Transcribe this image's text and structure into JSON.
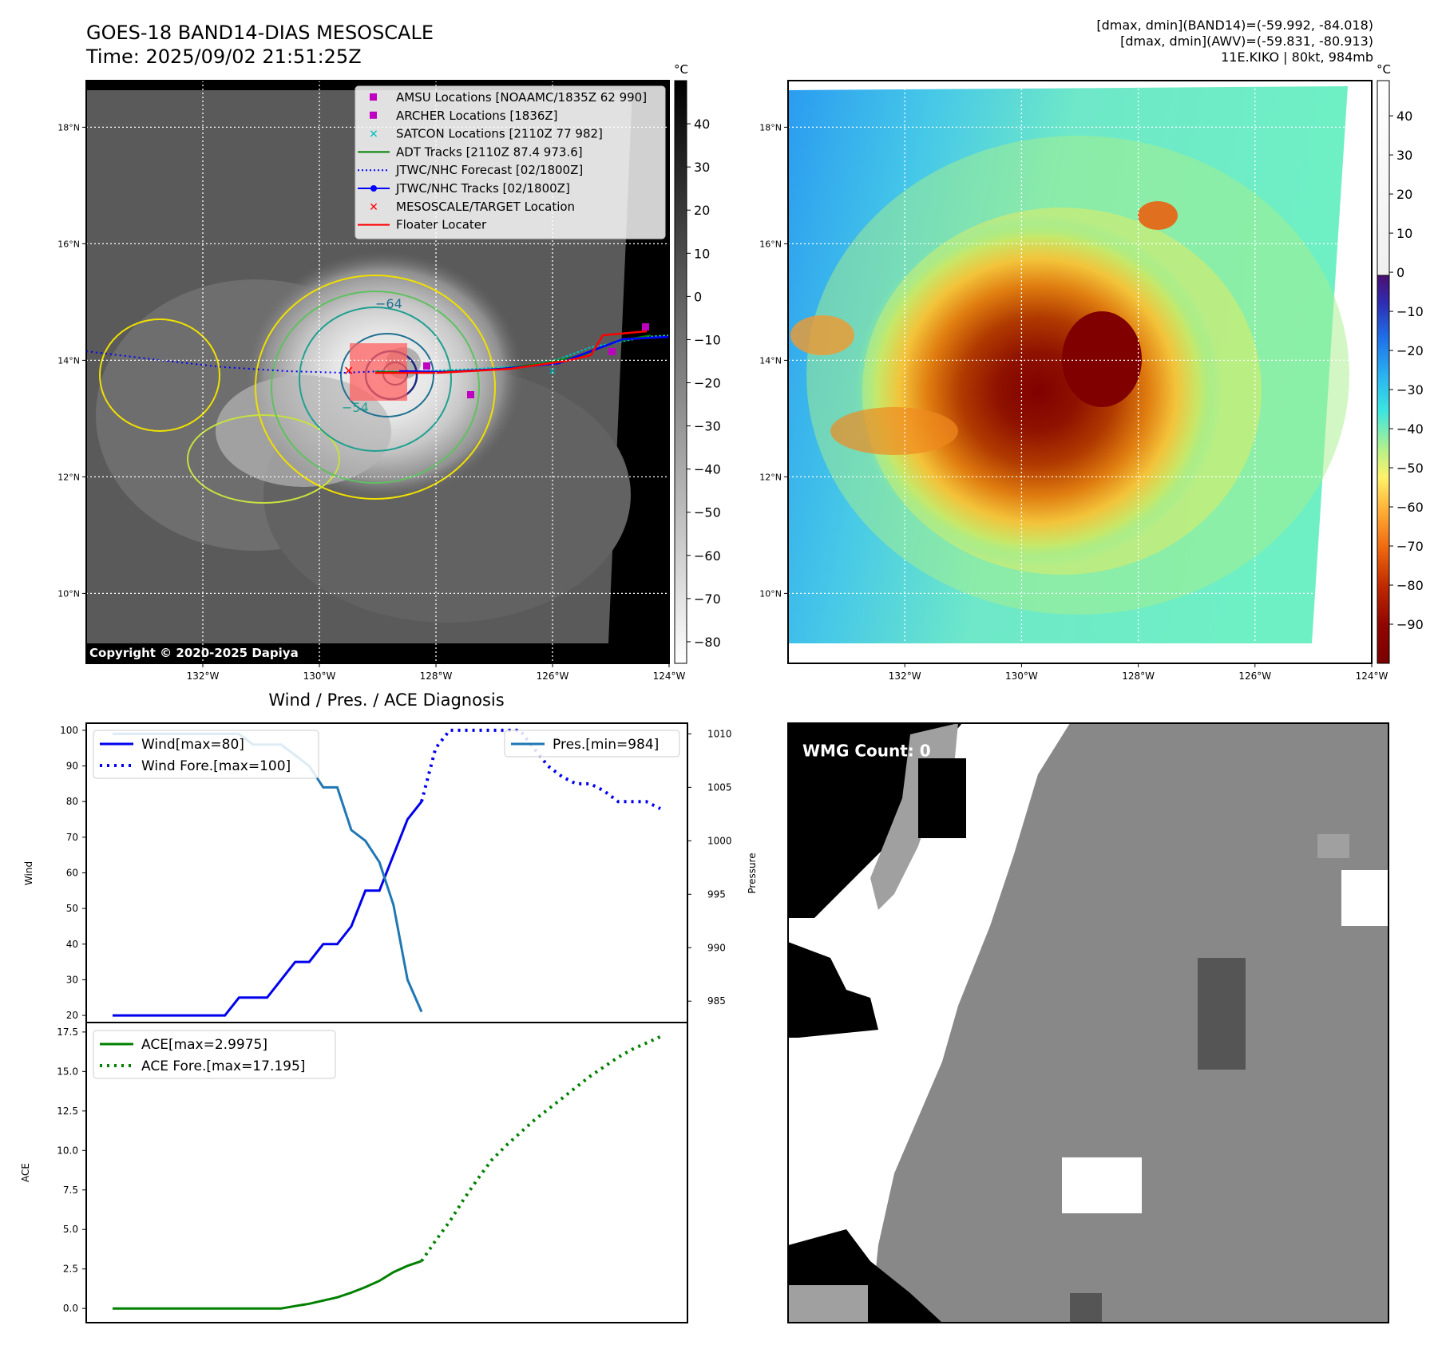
{
  "header": {
    "title": "GOES-18 BAND14-DIAS MESOSCALE",
    "time": "Time: 2025/09/02 21:51:25Z",
    "info_band14": "[dmax, dmin](BAND14)=(-59.992, -84.018)",
    "info_awv": "[dmax, dmin](AWV)=(-59.831, -80.913)",
    "info_storm": "11E.KIKO | 80kt, 984mb"
  },
  "map_axes": {
    "lon_ticks": [
      "132°W",
      "130°W",
      "128°W",
      "126°W",
      "124°W"
    ],
    "lon_values": [
      -132,
      -130,
      -128,
      -126,
      -124
    ],
    "lat_ticks": [
      "18°N",
      "16°N",
      "14°N",
      "12°N",
      "10°N"
    ],
    "lat_values": [
      18,
      16,
      14,
      12,
      10
    ],
    "lon_range": [
      -134,
      -124
    ],
    "lat_range": [
      8.8,
      18.8
    ]
  },
  "ir_panel": {
    "colorbar_unit": "°C",
    "colorbar_ticks": [
      "40",
      "30",
      "20",
      "10",
      "0",
      "−10",
      "−20",
      "−30",
      "−40",
      "−50",
      "−60",
      "−70",
      "−80"
    ],
    "colorbar_values": [
      40,
      30,
      20,
      10,
      0,
      -10,
      -20,
      -30,
      -40,
      -50,
      -60,
      -70,
      -80
    ],
    "colorbar_range": [
      -85,
      50
    ],
    "contour_labels": [
      "−64",
      "−54"
    ],
    "copyright": "Copyright © 2020-2025 Dapiya",
    "legend": [
      {
        "label": "AMSU Locations [NOAAMC/1835Z 62 990]",
        "color": "#c000c0",
        "marker": "square"
      },
      {
        "label": "ARCHER Locations [1836Z]",
        "color": "#c000c0",
        "marker": "square"
      },
      {
        "label": "SATCON Locations [2110Z 77 982]",
        "color": "#00c0c0",
        "marker": "x"
      },
      {
        "label": "ADT Tracks [2110Z 87.4 973.6]",
        "color": "#008000",
        "marker": "line"
      },
      {
        "label": "JTWC/NHC Forecast [02/1800Z]",
        "color": "#0000ff",
        "marker": "dotted"
      },
      {
        "label": "JTWC/NHC Tracks [02/1800Z]",
        "color": "#0000ff",
        "marker": "line-dot"
      },
      {
        "label": "MESOSCALE/TARGET Location",
        "color": "#ff0000",
        "marker": "x"
      },
      {
        "label": "Floater Locater",
        "color": "#ff0000",
        "marker": "line"
      }
    ]
  },
  "awv_panel": {
    "colorbar_unit": "°C",
    "colorbar_ticks": [
      "40",
      "30",
      "20",
      "10",
      "0",
      "−10",
      "−20",
      "−30",
      "−40",
      "−50",
      "−60",
      "−70",
      "−80",
      "−90"
    ],
    "colorbar_values": [
      40,
      30,
      20,
      10,
      0,
      -10,
      -20,
      -30,
      -40,
      -50,
      -60,
      -70,
      -80,
      -90
    ],
    "colorbar_range": [
      -100,
      49
    ]
  },
  "diag_title": "Wind / Pres. / ACE Diagnosis",
  "wmg": {
    "label": "WMG Count: 0"
  },
  "chart_data": [
    {
      "type": "line",
      "panel": "wind-pressure",
      "x": [
        0,
        1,
        2,
        3,
        4,
        5,
        6,
        7,
        8,
        9,
        10,
        11,
        12,
        13,
        14,
        15,
        16,
        17,
        18,
        19,
        20,
        21,
        22,
        23,
        24,
        25,
        26,
        27,
        28,
        29,
        30,
        31,
        32,
        33,
        34,
        35,
        36,
        37,
        38,
        39
      ],
      "ylabel": "Wind",
      "ylabel_right": "Pressure",
      "yticks": [
        20,
        30,
        40,
        50,
        60,
        70,
        80,
        90,
        100
      ],
      "ylim": [
        18,
        102
      ],
      "yticks_right": [
        985,
        990,
        995,
        1000,
        1005,
        1010
      ],
      "ylim_right": [
        983,
        1011
      ],
      "series": [
        {
          "name": "Wind[max=80]",
          "axis": "left",
          "style": "solid",
          "color": "#0000ee",
          "x": [
            0,
            1,
            2,
            3,
            4,
            5,
            6,
            7,
            8,
            9,
            10,
            11,
            12,
            13,
            14,
            15,
            16,
            17,
            18,
            19,
            20,
            21,
            22
          ],
          "values": [
            20,
            20,
            20,
            20,
            20,
            20,
            20,
            20,
            20,
            25,
            25,
            25,
            30,
            35,
            35,
            40,
            40,
            45,
            55,
            55,
            65,
            75,
            80
          ]
        },
        {
          "name": "Wind Fore.[max=100]",
          "axis": "left",
          "style": "dotted",
          "color": "#0000ee",
          "x": [
            22,
            23,
            24,
            25,
            26,
            27,
            28,
            29,
            30,
            31,
            32,
            33,
            34,
            35,
            36,
            37,
            38,
            39
          ],
          "values": [
            80,
            95,
            100,
            100,
            100,
            100,
            100,
            100,
            95,
            90,
            87,
            85,
            85,
            83,
            80,
            80,
            80,
            78
          ]
        },
        {
          "name": "Pres.[min=984]",
          "axis": "right",
          "style": "solid",
          "color": "#1f77b4",
          "x": [
            0,
            1,
            2,
            3,
            4,
            5,
            6,
            7,
            8,
            9,
            10,
            11,
            12,
            13,
            14,
            15,
            16,
            17,
            18,
            19,
            20,
            21,
            22
          ],
          "values": [
            1010,
            1010,
            1010,
            1010,
            1010,
            1010,
            1010,
            1010,
            1010,
            1010,
            1009,
            1009,
            1009,
            1008,
            1007,
            1005,
            1005,
            1001,
            1000,
            998,
            994,
            987,
            984
          ]
        }
      ]
    },
    {
      "type": "line",
      "panel": "ace",
      "x": [
        0,
        1,
        2,
        3,
        4,
        5,
        6,
        7,
        8,
        9,
        10,
        11,
        12,
        13,
        14,
        15,
        16,
        17,
        18,
        19,
        20,
        21,
        22,
        23,
        24,
        25,
        26,
        27,
        28,
        29,
        30,
        31,
        32,
        33,
        34,
        35,
        36,
        37,
        38,
        39
      ],
      "ylabel": "ACE",
      "yticks": [
        0.0,
        2.5,
        5.0,
        7.5,
        10.0,
        12.5,
        15.0,
        17.5
      ],
      "ytick_labels": [
        "0.0",
        "2.5",
        "5.0",
        "7.5",
        "10.0",
        "12.5",
        "15.0",
        "17.5"
      ],
      "ylim": [
        -0.9,
        18.1
      ],
      "series": [
        {
          "name": "ACE[max=2.9975]",
          "style": "solid",
          "color": "#008000",
          "x": [
            0,
            1,
            2,
            3,
            4,
            5,
            6,
            7,
            8,
            9,
            10,
            11,
            12,
            13,
            14,
            15,
            16,
            17,
            18,
            19,
            20,
            21,
            22
          ],
          "values": [
            0,
            0,
            0,
            0,
            0,
            0,
            0,
            0,
            0,
            0,
            0,
            0,
            0,
            0.15,
            0.3,
            0.5,
            0.7,
            1.0,
            1.35,
            1.75,
            2.3,
            2.7,
            3.0
          ]
        },
        {
          "name": "ACE Fore.[max=17.195]",
          "style": "dotted",
          "color": "#008000",
          "x": [
            22,
            23,
            24,
            25,
            26,
            27,
            28,
            29,
            30,
            31,
            32,
            33,
            34,
            35,
            36,
            37,
            38,
            39
          ],
          "values": [
            3.0,
            4.3,
            5.5,
            6.9,
            8.2,
            9.4,
            10.3,
            11.1,
            11.9,
            12.6,
            13.3,
            14.0,
            14.7,
            15.3,
            15.9,
            16.4,
            16.8,
            17.2
          ]
        }
      ]
    }
  ]
}
